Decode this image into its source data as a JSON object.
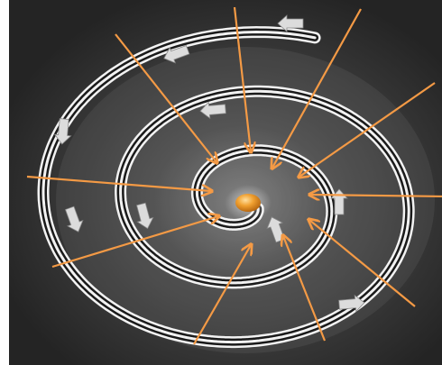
{
  "colors": {
    "background_dark": "#2a2a2a",
    "background_mid": "#3e3e3e",
    "glow": "#9a9a9a",
    "spiral_line": "#f2f2f2",
    "spiral_groove": "#1a1a1a",
    "arrow_orange": "#f49a45",
    "center_orange": "#e88a1c",
    "center_highlight": "#ffd27a",
    "direction_arrow": "#dcdcdc"
  },
  "icons": {
    "inflow_arrow": "orange-arrow-icon",
    "spiral_direction": "white-block-arrow-icon",
    "center": "orange-core-icon"
  }
}
